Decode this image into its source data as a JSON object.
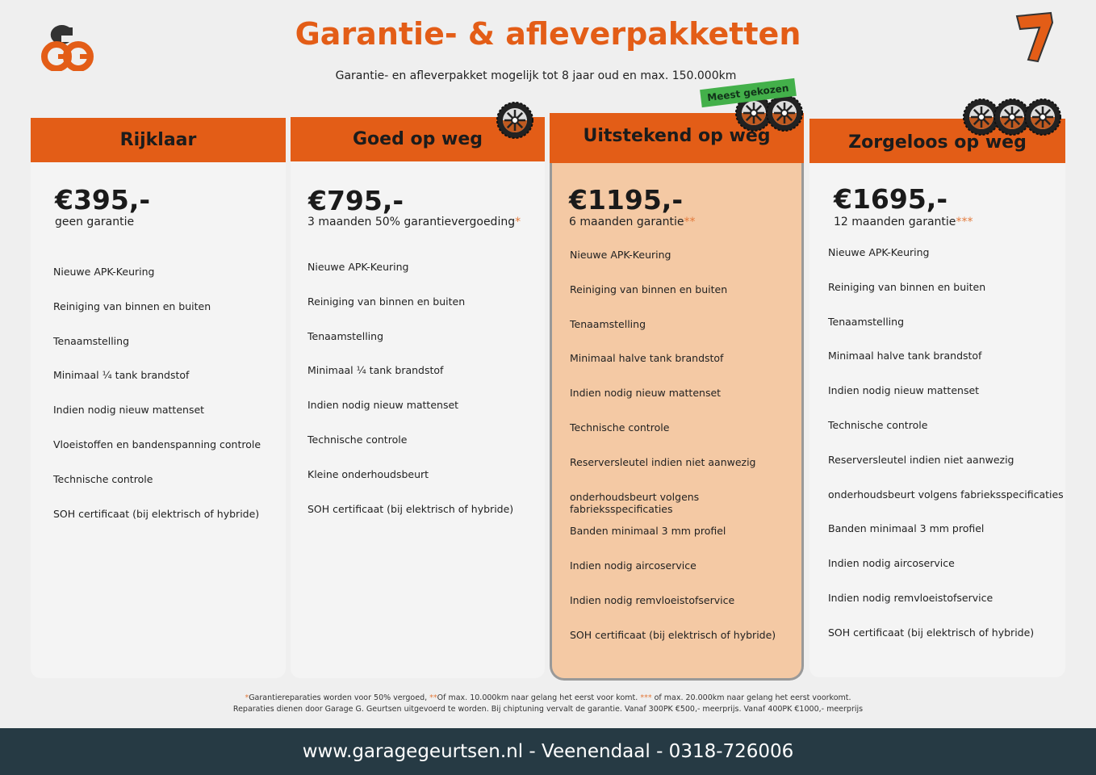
{
  "header": {
    "title": "Garantie- & afleverpakketten",
    "subtitle": "Garantie- en afleverpakket mogelijk tot 8 jaar oud en max. 150.000km",
    "logo_text": "GG",
    "badge": "Meest gekozen"
  },
  "colors": {
    "accent": "#e35d17",
    "highlight": "#f4c9a4",
    "badge": "#43b04a",
    "footer": "#263a44"
  },
  "packages": [
    {
      "name": "Rijklaar",
      "price": "€395,-",
      "desc": "geen garantie",
      "stars": "",
      "tires": 0,
      "items": [
        "Nieuwe APK-Keuring",
        "Reiniging van binnen en buiten",
        "Tenaamstelling",
        "Minimaal ¼  tank brandstof",
        "Indien nodig nieuw mattenset",
        "Vloeistoffen en bandenspanning controle",
        "Technische controle",
        "SOH certificaat (bij elektrisch of hybride)"
      ]
    },
    {
      "name": "Goed op weg",
      "price": "€795,-",
      "desc": "3 maanden 50% garantievergoeding",
      "stars": "*",
      "tires": 1,
      "items": [
        "Nieuwe APK-Keuring",
        "Reiniging van binnen en buiten",
        "Tenaamstelling",
        "Minimaal ¼ tank brandstof",
        "Indien nodig nieuw mattenset",
        "Technische controle",
        "Kleine onderhoudsbeurt",
        "SOH certificaat (bij elektrisch of hybride)"
      ]
    },
    {
      "name": "Uitstekend op weg",
      "price": "€1195,-",
      "desc": "6 maanden garantie",
      "stars": "**",
      "tires": 2,
      "items": [
        "Nieuwe APK-Keuring",
        "Reiniging van binnen en buiten",
        "Tenaamstelling",
        "Minimaal halve tank brandstof",
        "Indien nodig nieuw mattenset",
        "Technische controle",
        "Reserversleutel indien niet aanwezig",
        "onderhoudsbeurt volgens fabrieksspecificaties",
        "Banden minimaal 3 mm profiel",
        "Indien nodig aircoservice",
        "Indien nodig remvloeistofservice",
        "SOH certificaat (bij elektrisch of hybride)"
      ]
    },
    {
      "name": "Zorgeloos op weg",
      "price": "€1695,-",
      "desc": "12 maanden garantie",
      "stars": "***",
      "tires": 3,
      "items": [
        "Nieuwe APK-Keuring",
        "Reiniging van binnen en buiten",
        "Tenaamstelling",
        "Minimaal halve tank brandstof",
        "Indien nodig nieuw mattenset",
        "Technische controle",
        "Reserversleutel indien niet aanwezig",
        "onderhoudsbeurt volgens fabrieksspecificaties",
        "Banden minimaal 3 mm profiel",
        "Indien nodig aircoservice",
        "Indien nodig remvloeistofservice",
        "SOH certificaat (bij elektrisch of hybride)"
      ]
    }
  ],
  "footnotes": {
    "s1": "*",
    "t1": "Garantiereparaties worden voor 50% vergoed, ",
    "s2": "**",
    "t2": "Of max. 10.000km naar gelang het eerst voor komt. ",
    "s3": "***",
    "t3": " of max. 20.000km naar gelang het eerst voorkomt.",
    "line2": "Reparaties dienen door Garage G. Geurtsen uitgevoerd te worden. Bij chiptuning vervalt de garantie. Vanaf 300PK €500,- meerprijs. Vanaf 400PK €1000,- meerprijs"
  },
  "footer": {
    "contact": "www.garagegeurtsen.nl - Veenendaal - 0318-726006"
  }
}
